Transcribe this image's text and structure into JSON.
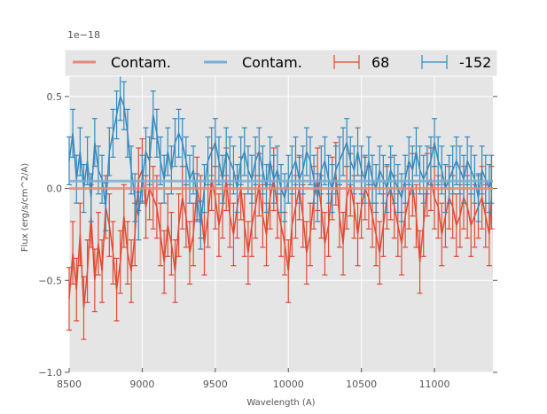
{
  "chart_data": {
    "type": "line",
    "title": "",
    "xlabel": "Wavelength (A)",
    "ylabel": "Flux (erg/s/cm^2/A)",
    "offset_text": "1e−18",
    "xlim": [
      8500,
      11400
    ],
    "ylim": [
      -1.0,
      0.75
    ],
    "xticks": [
      8500,
      9000,
      9500,
      10000,
      10500,
      11000
    ],
    "xtick_labels": [
      "8500",
      "9000",
      "9500",
      "10000",
      "10500",
      "11000"
    ],
    "yticks": [
      -1.0,
      -0.5,
      0.0,
      0.5
    ],
    "ytick_labels": [
      "−1.0",
      "−0.5",
      "0.0",
      "0.5"
    ],
    "grid": true,
    "legend_position": "top",
    "legend": [
      {
        "label": "Contam.",
        "kind": "line",
        "color": "#E8877A"
      },
      {
        "label": "Contam.",
        "kind": "line",
        "color": "#7AAFD4"
      },
      {
        "label": "68",
        "kind": "errorbar",
        "color": "#E24A33"
      },
      {
        "label": "-152",
        "kind": "errorbar",
        "color": "#348ABD"
      }
    ],
    "contam": [
      {
        "name": "Contam. (68)",
        "color": "#E8877A",
        "value": 0.0
      },
      {
        "name": "Contam. (-152)",
        "color": "#7AAFD4",
        "value": 0.04
      }
    ],
    "series": [
      {
        "name": "68",
        "color": "#E24A33",
        "x": [
          8500,
          8525,
          8550,
          8575,
          8600,
          8625,
          8650,
          8675,
          8700,
          8725,
          8750,
          8775,
          8800,
          8825,
          8850,
          8875,
          8900,
          8925,
          8950,
          8975,
          9000,
          9025,
          9050,
          9075,
          9100,
          9125,
          9150,
          9175,
          9200,
          9225,
          9250,
          9275,
          9300,
          9325,
          9350,
          9375,
          9400,
          9425,
          9450,
          9475,
          9500,
          9525,
          9550,
          9575,
          9600,
          9625,
          9650,
          9675,
          9700,
          9725,
          9750,
          9775,
          9800,
          9825,
          9850,
          9875,
          9900,
          9925,
          9950,
          9975,
          10000,
          10025,
          10050,
          10075,
          10100,
          10125,
          10150,
          10175,
          10200,
          10225,
          10250,
          10275,
          10300,
          10325,
          10350,
          10375,
          10400,
          10425,
          10450,
          10475,
          10500,
          10525,
          10550,
          10575,
          10600,
          10625,
          10650,
          10675,
          10700,
          10725,
          10750,
          10775,
          10800,
          10825,
          10850,
          10875,
          10900,
          10925,
          10950,
          10975,
          11000,
          11025,
          11050,
          11075,
          11100,
          11125,
          11150,
          11175,
          11200,
          11225,
          11250,
          11275,
          11300,
          11325,
          11350,
          11375,
          11390
        ],
        "y": [
          -0.6,
          -0.35,
          -0.55,
          -0.25,
          -0.65,
          -0.45,
          -0.15,
          -0.5,
          -0.3,
          -0.45,
          -0.1,
          -0.2,
          -0.35,
          -0.55,
          -0.4,
          -0.15,
          -0.35,
          -0.45,
          -0.25,
          0.05,
          0.1,
          -0.1,
          0.0,
          -0.05,
          -0.1,
          -0.25,
          -0.4,
          -0.2,
          -0.3,
          -0.45,
          -0.2,
          -0.05,
          -0.15,
          -0.35,
          -0.25,
          0.0,
          -0.1,
          -0.3,
          -0.15,
          0.05,
          -0.05,
          -0.2,
          -0.1,
          0.05,
          -0.15,
          -0.25,
          -0.1,
          0.0,
          -0.2,
          -0.35,
          -0.2,
          -0.1,
          0.02,
          -0.15,
          -0.25,
          -0.05,
          0.05,
          -0.1,
          -0.2,
          -0.3,
          -0.45,
          -0.2,
          -0.1,
          0.0,
          -0.15,
          -0.35,
          -0.25,
          -0.05,
          0.05,
          -0.1,
          -0.3,
          -0.2,
          0.0,
          0.08,
          -0.15,
          -0.3,
          -0.05,
          0.02,
          -0.1,
          -0.25,
          -0.1,
          0.0,
          -0.05,
          -0.15,
          -0.25,
          -0.35,
          -0.2,
          -0.05,
          0.0,
          -0.1,
          -0.2,
          -0.3,
          -0.15,
          -0.05,
          0.02,
          -0.15,
          -0.4,
          -0.2,
          0.02,
          0.05,
          -0.05,
          -0.1,
          -0.25,
          -0.15,
          -0.05,
          -0.1,
          -0.2,
          -0.15,
          -0.05,
          -0.1,
          -0.2,
          -0.15,
          -0.1,
          -0.05,
          -0.15,
          -0.25,
          -0.05
        ],
        "err": 0.17
      },
      {
        "name": "-152",
        "color": "#348ABD",
        "x": [
          8500,
          8525,
          8550,
          8575,
          8600,
          8625,
          8650,
          8675,
          8700,
          8725,
          8750,
          8775,
          8800,
          8825,
          8850,
          8875,
          8900,
          8925,
          8950,
          8975,
          9000,
          9025,
          9050,
          9075,
          9100,
          9125,
          9150,
          9175,
          9200,
          9225,
          9250,
          9275,
          9300,
          9325,
          9350,
          9375,
          9400,
          9425,
          9450,
          9475,
          9500,
          9525,
          9550,
          9575,
          9600,
          9625,
          9650,
          9675,
          9700,
          9725,
          9750,
          9775,
          9800,
          9825,
          9850,
          9875,
          9900,
          9925,
          9950,
          9975,
          10000,
          10025,
          10050,
          10075,
          10100,
          10125,
          10150,
          10175,
          10200,
          10225,
          10250,
          10275,
          10300,
          10325,
          10350,
          10375,
          10400,
          10425,
          10450,
          10475,
          10500,
          10525,
          10550,
          10575,
          10600,
          10625,
          10650,
          10675,
          10700,
          10725,
          10750,
          10775,
          10800,
          10825,
          10850,
          10875,
          10900,
          10925,
          10950,
          10975,
          11000,
          11025,
          11050,
          11075,
          11100,
          11125,
          11150,
          11175,
          11200,
          11225,
          11250,
          11275,
          11300,
          11325,
          11350,
          11375,
          11390
        ],
        "y": [
          0.15,
          0.3,
          0.05,
          0.2,
          0.0,
          0.15,
          -0.05,
          0.25,
          0.1,
          0.05,
          -0.1,
          0.2,
          0.3,
          0.4,
          0.5,
          0.45,
          0.3,
          0.1,
          -0.05,
          -0.15,
          0.05,
          0.2,
          0.15,
          0.4,
          0.3,
          0.15,
          0.05,
          0.2,
          0.1,
          0.25,
          0.3,
          0.25,
          0.15,
          0.05,
          0.1,
          -0.05,
          -0.2,
          0.0,
          0.15,
          0.2,
          0.25,
          0.15,
          0.05,
          0.2,
          0.15,
          0.1,
          0.0,
          0.15,
          0.2,
          0.1,
          0.05,
          0.15,
          0.2,
          0.1,
          0.0,
          0.15,
          0.05,
          0.1,
          0.0,
          -0.05,
          0.05,
          0.1,
          0.15,
          0.05,
          0.1,
          0.2,
          0.15,
          0.05,
          -0.05,
          0.1,
          0.15,
          0.05,
          0.0,
          0.1,
          0.15,
          0.2,
          0.25,
          0.15,
          0.1,
          0.2,
          0.1,
          0.05,
          0.15,
          0.05,
          0.0,
          0.1,
          0.05,
          0.0,
          0.1,
          0.05,
          0.0,
          -0.05,
          0.05,
          0.15,
          0.1,
          0.2,
          0.1,
          0.05,
          0.1,
          0.15,
          0.25,
          0.15,
          0.1,
          0.0,
          0.05,
          0.1,
          0.15,
          0.1,
          0.05,
          0.15,
          0.1,
          0.05,
          -0.05,
          0.1,
          0.05,
          0.0,
          0.05
        ],
        "err": 0.13
      }
    ]
  }
}
